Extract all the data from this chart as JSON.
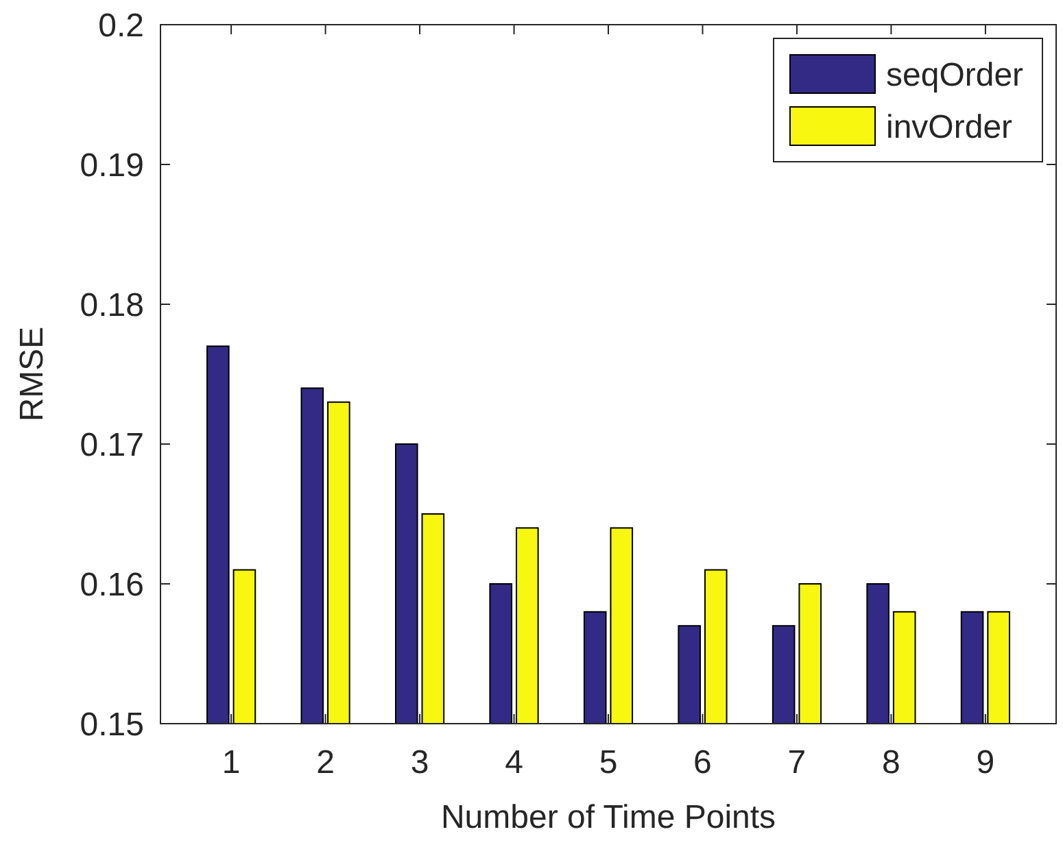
{
  "chart_data": {
    "type": "bar",
    "xlabel": "Number of Time Points",
    "ylabel": "RMSE",
    "categories": [
      "1",
      "2",
      "3",
      "4",
      "5",
      "6",
      "7",
      "8",
      "9"
    ],
    "series": [
      {
        "name": "seqOrder",
        "color": "#332a85",
        "values": [
          0.177,
          0.174,
          0.17,
          0.16,
          0.158,
          0.157,
          0.157,
          0.16,
          0.158
        ]
      },
      {
        "name": "invOrder",
        "color": "#f7f70f",
        "values": [
          0.161,
          0.173,
          0.165,
          0.164,
          0.164,
          0.161,
          0.16,
          0.158,
          0.158
        ]
      }
    ],
    "ylim": [
      0.15,
      0.2
    ],
    "yticks": [
      0.15,
      0.16,
      0.17,
      0.18,
      0.19,
      0.2
    ],
    "grid": false,
    "legend": "top right"
  }
}
